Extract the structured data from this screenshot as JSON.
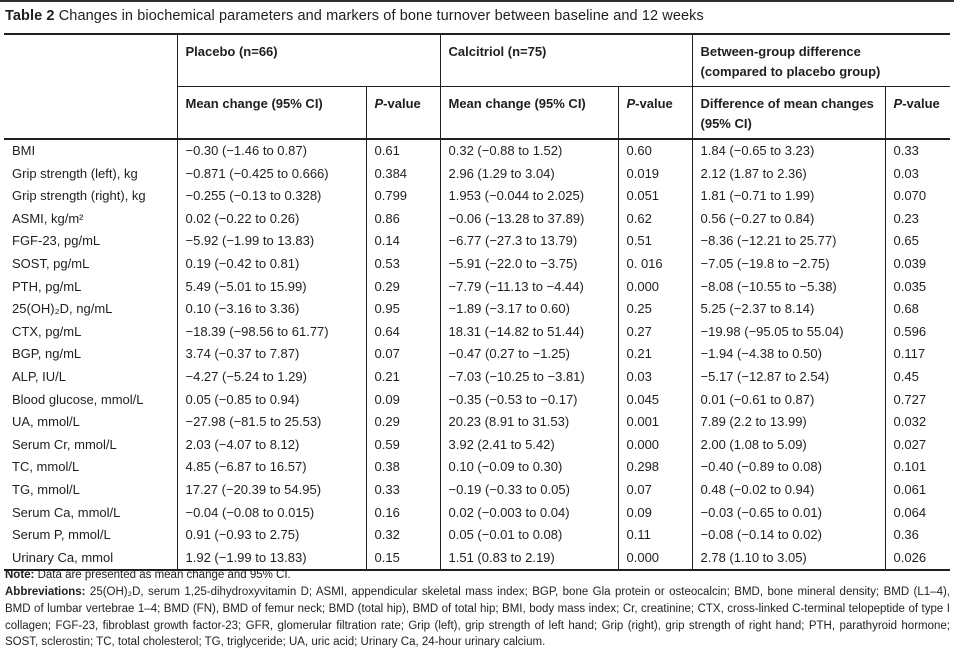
{
  "title": {
    "label": "Table 2",
    "text": "Changes in biochemical parameters and markers of bone turnover between baseline and 12 weeks"
  },
  "table": {
    "headers": {
      "group_placebo": "Placebo (n=66)",
      "group_calcitriol": "Calcitriol (n=75)",
      "group_difference_line1": "Between-group difference",
      "group_difference_line2": "(compared to placebo group)",
      "mean_change": "Mean change (95% CI)",
      "difference": "Difference of mean changes (95% CI)",
      "p_italic": "P",
      "p_rest": "-value"
    },
    "rows": [
      {
        "param": "BMI",
        "cells": [
          "−0.30 (−1.46 to 0.87)",
          "0.61",
          "0.32 (−0.88 to 1.52)",
          "0.60",
          "1.84 (−0.65 to 3.23)",
          "0.33"
        ]
      },
      {
        "param": "Grip strength (left), kg",
        "cells": [
          "−0.871 (−0.425 to 0.666)",
          "0.384",
          "2.96 (1.29 to 3.04)",
          "0.019",
          "2.12 (1.87 to 2.36)",
          "0.03"
        ]
      },
      {
        "param": "Grip strength (right), kg",
        "cells": [
          "−0.255 (−0.13 to 0.328)",
          "0.799",
          "1.953 (−0.044 to 2.025)",
          "0.051",
          "1.81 (−0.71 to 1.99)",
          "0.070"
        ]
      },
      {
        "param": "ASMI, kg/m²",
        "cells": [
          "0.02 (−0.22 to 0.26)",
          "0.86",
          "−0.06 (−13.28 to 37.89)",
          "0.62",
          "0.56 (−0.27 to 0.84)",
          "0.23"
        ]
      },
      {
        "param": "FGF-23, pg/mL",
        "cells": [
          "−5.92 (−1.99 to 13.83)",
          "0.14",
          "−6.77 (−27.3 to 13.79)",
          "0.51",
          "−8.36 (−12.21 to 25.77)",
          "0.65"
        ]
      },
      {
        "param": "SOST, pg/mL",
        "cells": [
          "0.19 (−0.42 to 0.81)",
          "0.53",
          "−5.91 (−22.0 to −3.75)",
          "0. 016",
          "−7.05 (−19.8 to −2.75)",
          "0.039"
        ]
      },
      {
        "param": "PTH, pg/mL",
        "cells": [
          "5.49 (−5.01 to 15.99)",
          "0.29",
          "−7.79 (−11.13 to −4.44)",
          "0.000",
          "−8.08 (−10.55 to −5.38)",
          "0.035"
        ]
      },
      {
        "param": "25(OH)₂D, ng/mL",
        "cells": [
          "0.10 (−3.16 to 3.36)",
          "0.95",
          "−1.89 (−3.17 to 0.60)",
          "0.25",
          "5.25 (−2.37 to 8.14)",
          "0.68"
        ]
      },
      {
        "param": "CTX, pg/mL",
        "cells": [
          "−18.39 (−98.56 to 61.77)",
          "0.64",
          "18.31 (−14.82 to 51.44)",
          "0.27",
          "−19.98 (−95.05 to 55.04)",
          "0.596"
        ]
      },
      {
        "param": "BGP, ng/mL",
        "cells": [
          "3.74 (−0.37 to 7.87)",
          "0.07",
          "−0.47 (0.27 to −1.25)",
          "0.21",
          "−1.94 (−4.38 to 0.50)",
          "0.117"
        ]
      },
      {
        "param": "ALP, IU/L",
        "cells": [
          "−4.27 (−5.24 to 1.29)",
          "0.21",
          "−7.03 (−10.25 to −3.81)",
          "0.03",
          "−5.17 (−12.87 to 2.54)",
          "0.45"
        ]
      },
      {
        "param": "Blood glucose, mmol/L",
        "cells": [
          "0.05 (−0.85 to 0.94)",
          "0.09",
          "−0.35 (−0.53 to −0.17)",
          "0.045",
          "0.01 (−0.61 to 0.87)",
          "0.727"
        ]
      },
      {
        "param": "UA, mmol/L",
        "cells": [
          "−27.98 (−81.5 to 25.53)",
          "0.29",
          "20.23 (8.91 to 31.53)",
          "0.001",
          "7.89 (2.2 to 13.99)",
          "0.032"
        ]
      },
      {
        "param": "Serum Cr, mmol/L",
        "cells": [
          "2.03 (−4.07 to 8.12)",
          "0.59",
          "3.92 (2.41 to 5.42)",
          "0.000",
          "2.00 (1.08 to 5.09)",
          "0.027"
        ]
      },
      {
        "param": "TC, mmol/L",
        "cells": [
          "4.85 (−6.87 to 16.57)",
          "0.38",
          "0.10 (−0.09 to 0.30)",
          "0.298",
          "−0.40 (−0.89 to 0.08)",
          "0.101"
        ]
      },
      {
        "param": "TG, mmol/L",
        "cells": [
          "17.27 (−20.39 to 54.95)",
          "0.33",
          "−0.19 (−0.33 to 0.05)",
          "0.07",
          "0.48 (−0.02 to 0.94)",
          "0.061"
        ]
      },
      {
        "param": "Serum Ca, mmol/L",
        "cells": [
          "−0.04 (−0.08 to 0.015)",
          "0.16",
          "0.02 (−0.003 to 0.04)",
          "0.09",
          "−0.03 (−0.65 to 0.01)",
          "0.064"
        ]
      },
      {
        "param": "Serum P, mmol/L",
        "cells": [
          "0.91 (−0.93 to 2.75)",
          "0.32",
          "0.05 (−0.01 to 0.08)",
          "0.11",
          "−0.08 (−0.14 to 0.02)",
          "0.36"
        ]
      },
      {
        "param": "Urinary Ca, mmol",
        "cells": [
          "1.92 (−1.99 to 13.83)",
          "0.15",
          "1.51 (0.83 to 2.19)",
          "0.000",
          "2.78 (1.10 to 3.05)",
          "0.026"
        ]
      }
    ]
  },
  "footer": {
    "note_label": "Note:",
    "note_text": " Data are presented as mean change and 95% CI.",
    "abbr_label": "Abbreviations:",
    "abbr_text": " 25(OH)₂D, serum 1,25-dihydroxyvitamin D; ASMI, appendicular skeletal mass index; BGP, bone Gla protein or osteocalcin; BMD, bone mineral density; BMD (L1–4), BMD of lumbar vertebrae 1–4; BMD (FN), BMD of femur neck; BMD (total hip), BMD of total hip; BMI, body mass index; Cr, creatinine; CTX, cross-linked C-terminal telopeptide of type I collagen; FGF-23, fibroblast growth factor-23; GFR, glomerular filtration rate; Grip (left), grip strength of left hand; Grip (right), grip strength of right hand; PTH, parathyroid hormone; SOST, sclerostin; TC, total cholesterol; TG, triglyceride; UA, uric acid; Urinary Ca, 24-hour urinary calcium."
  }
}
